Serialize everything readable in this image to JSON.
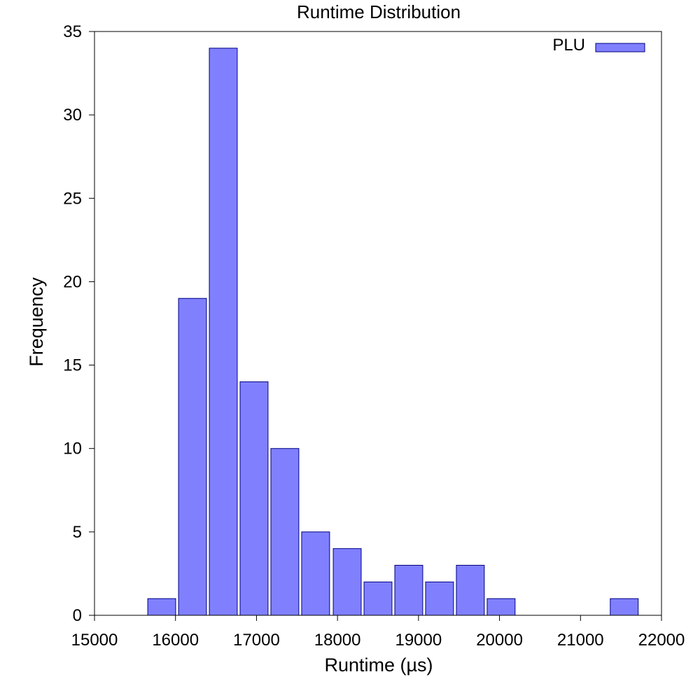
{
  "chart_data": {
    "type": "bar",
    "title": "Runtime Distribution",
    "xlabel": "Runtime (µs)",
    "ylabel": "Frequency",
    "xlim": [
      15000,
      22000
    ],
    "ylim": [
      0,
      35
    ],
    "xticks": [
      15000,
      16000,
      17000,
      18000,
      19000,
      20000,
      21000,
      22000
    ],
    "yticks": [
      0,
      5,
      10,
      15,
      20,
      25,
      30,
      35
    ],
    "bin_centers": [
      15830,
      16210,
      16590,
      16970,
      17350,
      17730,
      18120,
      18500,
      18880,
      19260,
      19640,
      20020,
      21540
    ],
    "bin_width": 345,
    "series": [
      {
        "name": "PLU",
        "color": "#8080ff",
        "edge_color": "#000080",
        "values": [
          1,
          19,
          34,
          14,
          10,
          5,
          4,
          2,
          3,
          2,
          3,
          1,
          1
        ]
      }
    ],
    "legend_position": "top-right",
    "grid": false
  }
}
